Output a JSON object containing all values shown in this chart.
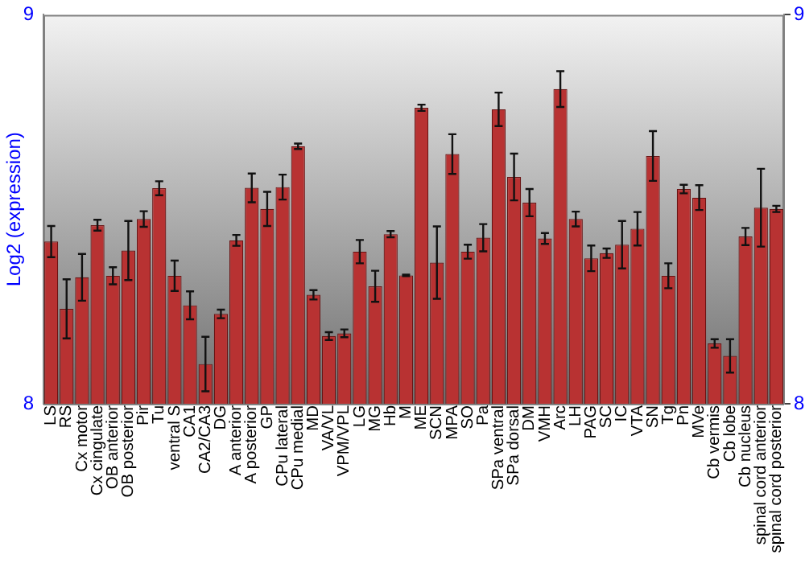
{
  "chart_data": {
    "type": "bar",
    "ylabel": "Log2 (expression)",
    "categories": [
      "LS",
      "RS",
      "Cx motor",
      "Cx cingulate",
      "OB anterior",
      "OB posterior",
      "Pir",
      "Tu",
      "ventral S",
      "CA1",
      "CA2/CA3",
      "DG",
      "A anterior",
      "A posterior",
      "GP",
      "CPu lateral",
      "CPu medial",
      "MD",
      "VA/VL",
      "VPM/VPL",
      "LG",
      "MG",
      "Hb",
      "M",
      "ME",
      "SCN",
      "MPA",
      "SO",
      "Pa",
      "SPa ventral",
      "SPa dorsal",
      "DM",
      "VMH",
      "Arc",
      "LH",
      "PAG",
      "SC",
      "IC",
      "VTA",
      "SN",
      "Tg",
      "Pn",
      "MVe",
      "Cb vermis",
      "Cb lobe",
      "Cb nucleus",
      "spinal cord anterior",
      "spinal cord posterior"
    ],
    "values": [
      8.417,
      8.244,
      8.325,
      8.459,
      8.329,
      8.394,
      8.475,
      8.554,
      8.329,
      8.253,
      8.102,
      8.231,
      8.42,
      8.555,
      8.501,
      8.557,
      8.662,
      8.28,
      8.174,
      8.181,
      8.391,
      8.302,
      8.436,
      8.33,
      8.761,
      8.363,
      8.642,
      8.391,
      8.427,
      8.757,
      8.583,
      8.517,
      8.425,
      8.809,
      8.475,
      8.374,
      8.387,
      8.409,
      8.45,
      8.637,
      8.329,
      8.552,
      8.53,
      8.155,
      8.123,
      8.43,
      8.504,
      8.501
    ],
    "errors": [
      0.04,
      0.076,
      0.06,
      0.014,
      0.022,
      0.076,
      0.02,
      0.018,
      0.039,
      0.036,
      0.07,
      0.011,
      0.014,
      0.037,
      0.044,
      0.032,
      0.007,
      0.012,
      0.01,
      0.01,
      0.03,
      0.04,
      0.008,
      0.002,
      0.008,
      0.093,
      0.051,
      0.018,
      0.035,
      0.043,
      0.06,
      0.035,
      0.014,
      0.046,
      0.019,
      0.033,
      0.012,
      0.061,
      0.043,
      0.064,
      0.032,
      0.011,
      0.032,
      0.011,
      0.043,
      0.022,
      0.1,
      0.008
    ],
    "color": "#b83232",
    "ylim": [
      8,
      9
    ],
    "yticks": [
      8,
      9
    ],
    "y2lim": [
      8,
      9
    ],
    "y2ticks": [
      8,
      9
    ],
    "grid": false,
    "legend": false
  }
}
